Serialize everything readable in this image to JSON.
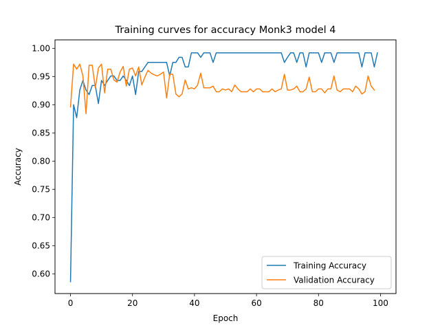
{
  "chart_data": {
    "type": "line",
    "title": "Training curves for accuracy Monk3 model 4",
    "xlabel": "Epoch",
    "ylabel": "Accuracy",
    "xlim": [
      -5,
      105
    ],
    "ylim": [
      0.565,
      1.015
    ],
    "xticks": [
      0,
      20,
      40,
      60,
      80,
      100
    ],
    "xtick_labels": [
      "0",
      "20",
      "40",
      "60",
      "80",
      "100"
    ],
    "yticks": [
      0.6,
      0.65,
      0.7,
      0.75,
      0.8,
      0.85,
      0.9,
      0.95,
      1.0
    ],
    "ytick_labels": [
      "0.60",
      "0.65",
      "0.70",
      "0.75",
      "0.80",
      "0.85",
      "0.90",
      "0.95",
      "1.00"
    ],
    "grid": false,
    "legend_position": "lower-right",
    "series": [
      {
        "name": "Training Accuracy",
        "color": "#1f77b4",
        "values": [
          0.586,
          0.9,
          0.877,
          0.926,
          0.943,
          0.926,
          0.918,
          0.934,
          0.934,
          0.902,
          0.943,
          0.934,
          0.943,
          0.951,
          0.951,
          0.943,
          0.943,
          0.951,
          0.943,
          0.934,
          0.951,
          0.918,
          0.959,
          0.959,
          0.967,
          0.975,
          0.975,
          0.975,
          0.975,
          0.975,
          0.975,
          0.975,
          0.951,
          0.975,
          0.975,
          0.984,
          0.984,
          0.967,
          0.967,
          0.992,
          0.992,
          0.992,
          0.984,
          0.992,
          0.992,
          0.992,
          0.975,
          0.992,
          0.992,
          0.992,
          0.992,
          0.992,
          0.992,
          0.992,
          0.992,
          0.992,
          0.992,
          0.992,
          0.992,
          0.992,
          0.992,
          0.992,
          0.992,
          0.992,
          0.992,
          0.992,
          0.992,
          0.992,
          0.992,
          0.975,
          0.984,
          0.992,
          0.992,
          0.975,
          0.992,
          0.992,
          0.967,
          0.992,
          0.992,
          0.992,
          0.992,
          0.975,
          0.992,
          0.992,
          0.992,
          0.975,
          0.992,
          0.992,
          0.992,
          0.992,
          0.992,
          0.992,
          0.992,
          0.992,
          0.967,
          0.992,
          0.992,
          0.992,
          0.967,
          0.992
        ]
      },
      {
        "name": "Validation Accuracy",
        "color": "#ff7f0e",
        "values": [
          0.896,
          0.972,
          0.963,
          0.972,
          0.951,
          0.884,
          0.97,
          0.97,
          0.93,
          0.965,
          0.972,
          0.921,
          0.963,
          0.963,
          0.944,
          0.94,
          0.958,
          0.968,
          0.933,
          0.963,
          0.965,
          0.951,
          0.967,
          0.935,
          0.949,
          0.961,
          0.956,
          0.953,
          0.951,
          0.954,
          0.958,
          0.912,
          0.954,
          0.954,
          0.919,
          0.914,
          0.919,
          0.944,
          0.928,
          0.93,
          0.928,
          0.935,
          0.956,
          0.93,
          0.93,
          0.93,
          0.933,
          0.923,
          0.923,
          0.928,
          0.926,
          0.928,
          0.923,
          0.935,
          0.928,
          0.923,
          0.923,
          0.923,
          0.928,
          0.923,
          0.928,
          0.928,
          0.923,
          0.923,
          0.923,
          0.928,
          0.923,
          0.926,
          0.928,
          0.954,
          0.926,
          0.926,
          0.928,
          0.933,
          0.923,
          0.923,
          0.928,
          0.949,
          0.923,
          0.923,
          0.928,
          0.928,
          0.921,
          0.928,
          0.928,
          0.951,
          0.926,
          0.923,
          0.928,
          0.928,
          0.928,
          0.923,
          0.933,
          0.928,
          0.919,
          0.923,
          0.951,
          0.933,
          0.926
        ]
      }
    ]
  }
}
